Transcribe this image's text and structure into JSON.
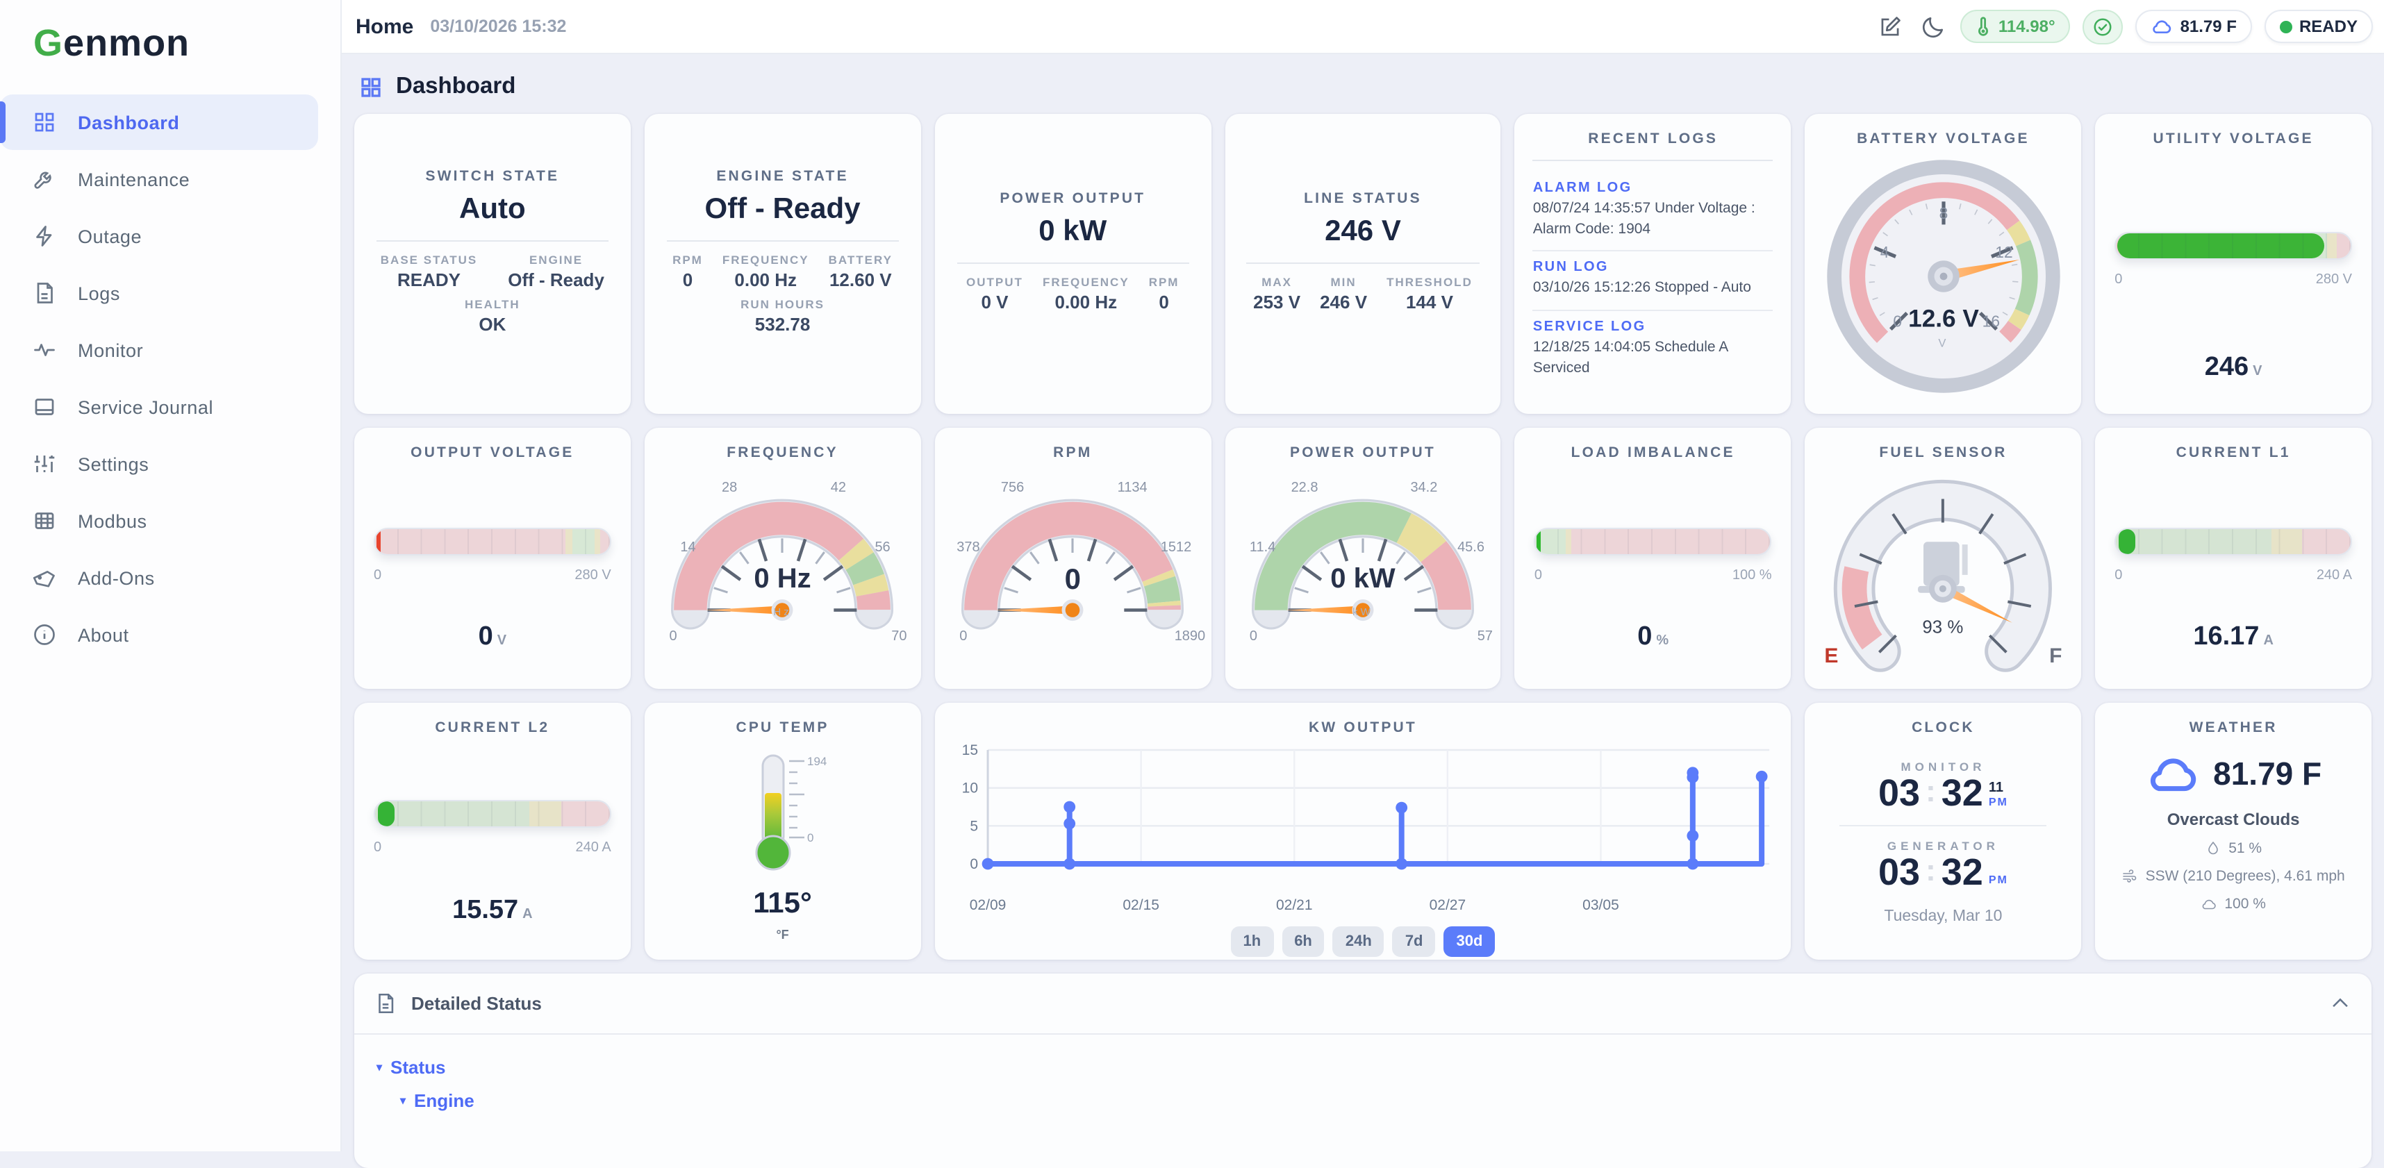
{
  "sidebar": {
    "logo": "Genmon",
    "items": [
      {
        "label": "Dashboard"
      },
      {
        "label": "Maintenance"
      },
      {
        "label": "Outage"
      },
      {
        "label": "Logs"
      },
      {
        "label": "Monitor"
      },
      {
        "label": "Service Journal"
      },
      {
        "label": "Settings"
      },
      {
        "label": "Modbus"
      },
      {
        "label": "Add-Ons"
      },
      {
        "label": "About"
      }
    ]
  },
  "topbar": {
    "title": "Home",
    "datetime": "03/10/2026 15:32",
    "temp_badge": "114.98°",
    "weather_badge": "81.79 F",
    "status_badge": "READY"
  },
  "page": {
    "title": "Dashboard"
  },
  "cards": {
    "switch_state": {
      "title": "SWITCH STATE",
      "value": "Auto",
      "fields": [
        {
          "label": "BASE STATUS",
          "value": "READY"
        },
        {
          "label": "ENGINE",
          "value": "Off - Ready"
        },
        {
          "label": "HEALTH",
          "value": "OK"
        }
      ]
    },
    "engine_state": {
      "title": "ENGINE STATE",
      "value": "Off - Ready",
      "fields": [
        {
          "label": "RPM",
          "value": "0"
        },
        {
          "label": "FREQUENCY",
          "value": "0.00 Hz"
        },
        {
          "label": "BATTERY",
          "value": "12.60 V"
        },
        {
          "label": "RUN HOURS",
          "value": "532.78"
        }
      ]
    },
    "power_output_card": {
      "title": "POWER OUTPUT",
      "value": "0 kW",
      "fields": [
        {
          "label": "OUTPUT",
          "value": "0 V"
        },
        {
          "label": "FREQUENCY",
          "value": "0.00 Hz"
        },
        {
          "label": "RPM",
          "value": "0"
        }
      ]
    },
    "line_status": {
      "title": "LINE STATUS",
      "value": "246 V",
      "fields": [
        {
          "label": "MAX",
          "value": "253 V"
        },
        {
          "label": "MIN",
          "value": "246 V"
        },
        {
          "label": "THRESHOLD",
          "value": "144 V"
        }
      ]
    },
    "recent_logs": {
      "title": "RECENT LOGS",
      "entries": [
        {
          "label": "ALARM LOG",
          "text": "08/07/24 14:35:57 Under Voltage : Alarm Code: 1904"
        },
        {
          "label": "RUN LOG",
          "text": "03/10/26 15:12:26 Stopped - Auto"
        },
        {
          "label": "SERVICE LOG",
          "text": "12/18/25 14:04:05 Schedule A Serviced"
        }
      ]
    },
    "battery_voltage": {
      "title": "BATTERY VOLTAGE",
      "value": "12.6 V",
      "unit": "V",
      "reading": 12.6,
      "min": 0,
      "max": 16,
      "ticks": [
        "0",
        "4",
        "8",
        "12",
        "16"
      ]
    },
    "utility_voltage": {
      "title": "UTILITY VOLTAGE",
      "value": "246",
      "unit": "V",
      "min_label": "0",
      "max_label": "280 V",
      "percent": 87.9
    },
    "output_voltage": {
      "title": "OUTPUT VOLTAGE",
      "value": "0",
      "unit": "V",
      "min_label": "0",
      "max_label": "280 V",
      "percent": 0
    },
    "frequency_gauge": {
      "title": "FREQUENCY",
      "value": "0 Hz",
      "unit": "Hz",
      "reading": 0,
      "max": 70,
      "ticks": [
        "0",
        "14",
        "28",
        "42",
        "56",
        "70"
      ]
    },
    "rpm_gauge": {
      "title": "RPM",
      "value": "0",
      "reading": 0,
      "max": 1890,
      "ticks": [
        "0",
        "378",
        "756",
        "1134",
        "1512",
        "1890"
      ]
    },
    "power_gauge": {
      "title": "POWER OUTPUT",
      "value": "0 kW",
      "unit": "kW",
      "reading": 0,
      "max": 57,
      "ticks": [
        "0",
        "11.4",
        "22.8",
        "34.2",
        "45.6",
        "57"
      ]
    },
    "load_imbalance": {
      "title": "LOAD IMBALANCE",
      "value": "0",
      "unit": "%",
      "min_label": "0",
      "max_label": "100 %",
      "percent": 0
    },
    "fuel_sensor": {
      "title": "FUEL SENSOR",
      "value": "93 %",
      "reading_percent": 93,
      "empty_label": "E",
      "full_label": "F"
    },
    "current_l1": {
      "title": "CURRENT L1",
      "value": "16.17",
      "unit": "A",
      "min_label": "0",
      "max_label": "240 A",
      "percent": 6.7
    },
    "current_l2": {
      "title": "CURRENT L2",
      "value": "15.57",
      "unit": "A",
      "min_label": "0",
      "max_label": "240 A",
      "percent": 6.5
    },
    "cpu_temp": {
      "title": "CPU TEMP",
      "value": "115°",
      "unit": "°F",
      "scale_top": "194",
      "scale_bottom": "0",
      "reading": 115
    },
    "clock": {
      "title": "CLOCK",
      "monitor_label": "MONITOR",
      "monitor_h": "03",
      "monitor_m": "32",
      "monitor_s": "11",
      "monitor_ampm": "PM",
      "generator_label": "GENERATOR",
      "generator_h": "03",
      "generator_m": "32",
      "generator_ampm": "PM",
      "date": "Tuesday, Mar 10",
      "colon": ":"
    },
    "weather": {
      "title": "WEATHER",
      "temp": "81.79 F",
      "condition": "Overcast Clouds",
      "humidity": "51 %",
      "wind": "SSW (210 Degrees), 4.61 mph",
      "cloud_cover": "100 %"
    },
    "detailed_status": {
      "title": "Detailed Status",
      "links": [
        {
          "label": "Status"
        },
        {
          "label": "Engine"
        }
      ]
    }
  },
  "chart_data": {
    "type": "line",
    "title": "KW OUTPUT",
    "ylabel": "",
    "xlabel": "",
    "ylim": [
      0,
      15
    ],
    "yticks": [
      0,
      5,
      10,
      15
    ],
    "xlim": [
      0,
      30.6
    ],
    "x_ticks": [
      {
        "pos": 0,
        "label": "02/09"
      },
      {
        "pos": 6,
        "label": "02/15"
      },
      {
        "pos": 12,
        "label": "02/21"
      },
      {
        "pos": 18,
        "label": "02/27"
      },
      {
        "pos": 24,
        "label": "03/05"
      }
    ],
    "line_color": "#5b7cfa",
    "points": [
      [
        0,
        0
      ],
      [
        3.2,
        0
      ],
      [
        3.2,
        5.3
      ],
      [
        3.2,
        7.5
      ],
      [
        3.2,
        0
      ],
      [
        16.2,
        0
      ],
      [
        16.2,
        7.4
      ],
      [
        16.2,
        0
      ],
      [
        27.6,
        0
      ],
      [
        27.6,
        3.7
      ],
      [
        27.6,
        11.4
      ],
      [
        27.6,
        12
      ],
      [
        27.6,
        0
      ],
      [
        30.3,
        0
      ],
      [
        30.3,
        11.5
      ]
    ],
    "markers": [
      [
        0,
        0
      ],
      [
        3.2,
        7.5
      ],
      [
        3.2,
        5.3
      ],
      [
        3.2,
        0
      ],
      [
        16.2,
        7.4
      ],
      [
        16.2,
        0
      ],
      [
        27.6,
        12
      ],
      [
        27.6,
        11.4
      ],
      [
        27.6,
        3.7
      ],
      [
        27.6,
        0
      ],
      [
        30.3,
        11.5
      ]
    ],
    "range_buttons": [
      {
        "label": "1h"
      },
      {
        "label": "6h"
      },
      {
        "label": "24h"
      },
      {
        "label": "7d"
      },
      {
        "label": "30d"
      }
    ],
    "active_range": "30d"
  }
}
